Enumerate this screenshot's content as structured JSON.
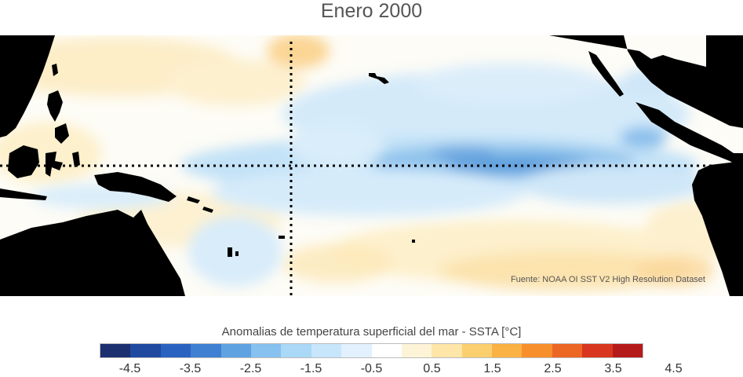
{
  "title": "Enero 2000",
  "source": "Fuente: NOAA OI SST V2 High Resolution Dataset",
  "colorbar": {
    "label": "Anomalias de temperatura superficial del mar - SSTA  [°C]",
    "ticks": [
      "-4.5",
      "-3.5",
      "-2.5",
      "-1.5",
      "-0.5",
      "0.5",
      "1.5",
      "2.5",
      "3.5",
      "4.5"
    ],
    "colors": [
      "#1c2f6e",
      "#1f4aa0",
      "#2a62c2",
      "#3f80d3",
      "#5fa2e2",
      "#86c1ef",
      "#aad8f7",
      "#c8e6fb",
      "#e2f1fd",
      "#ffffff",
      "#fdf4d7",
      "#fde6a8",
      "#fccf6e",
      "#fbb244",
      "#f78f2c",
      "#ec6624",
      "#d8361f",
      "#b51a1a"
    ]
  },
  "map": {
    "land_color": "#000000",
    "ocean_near_zero": "#ffffff",
    "reference_lines": [
      "equator",
      "date line"
    ]
  }
}
